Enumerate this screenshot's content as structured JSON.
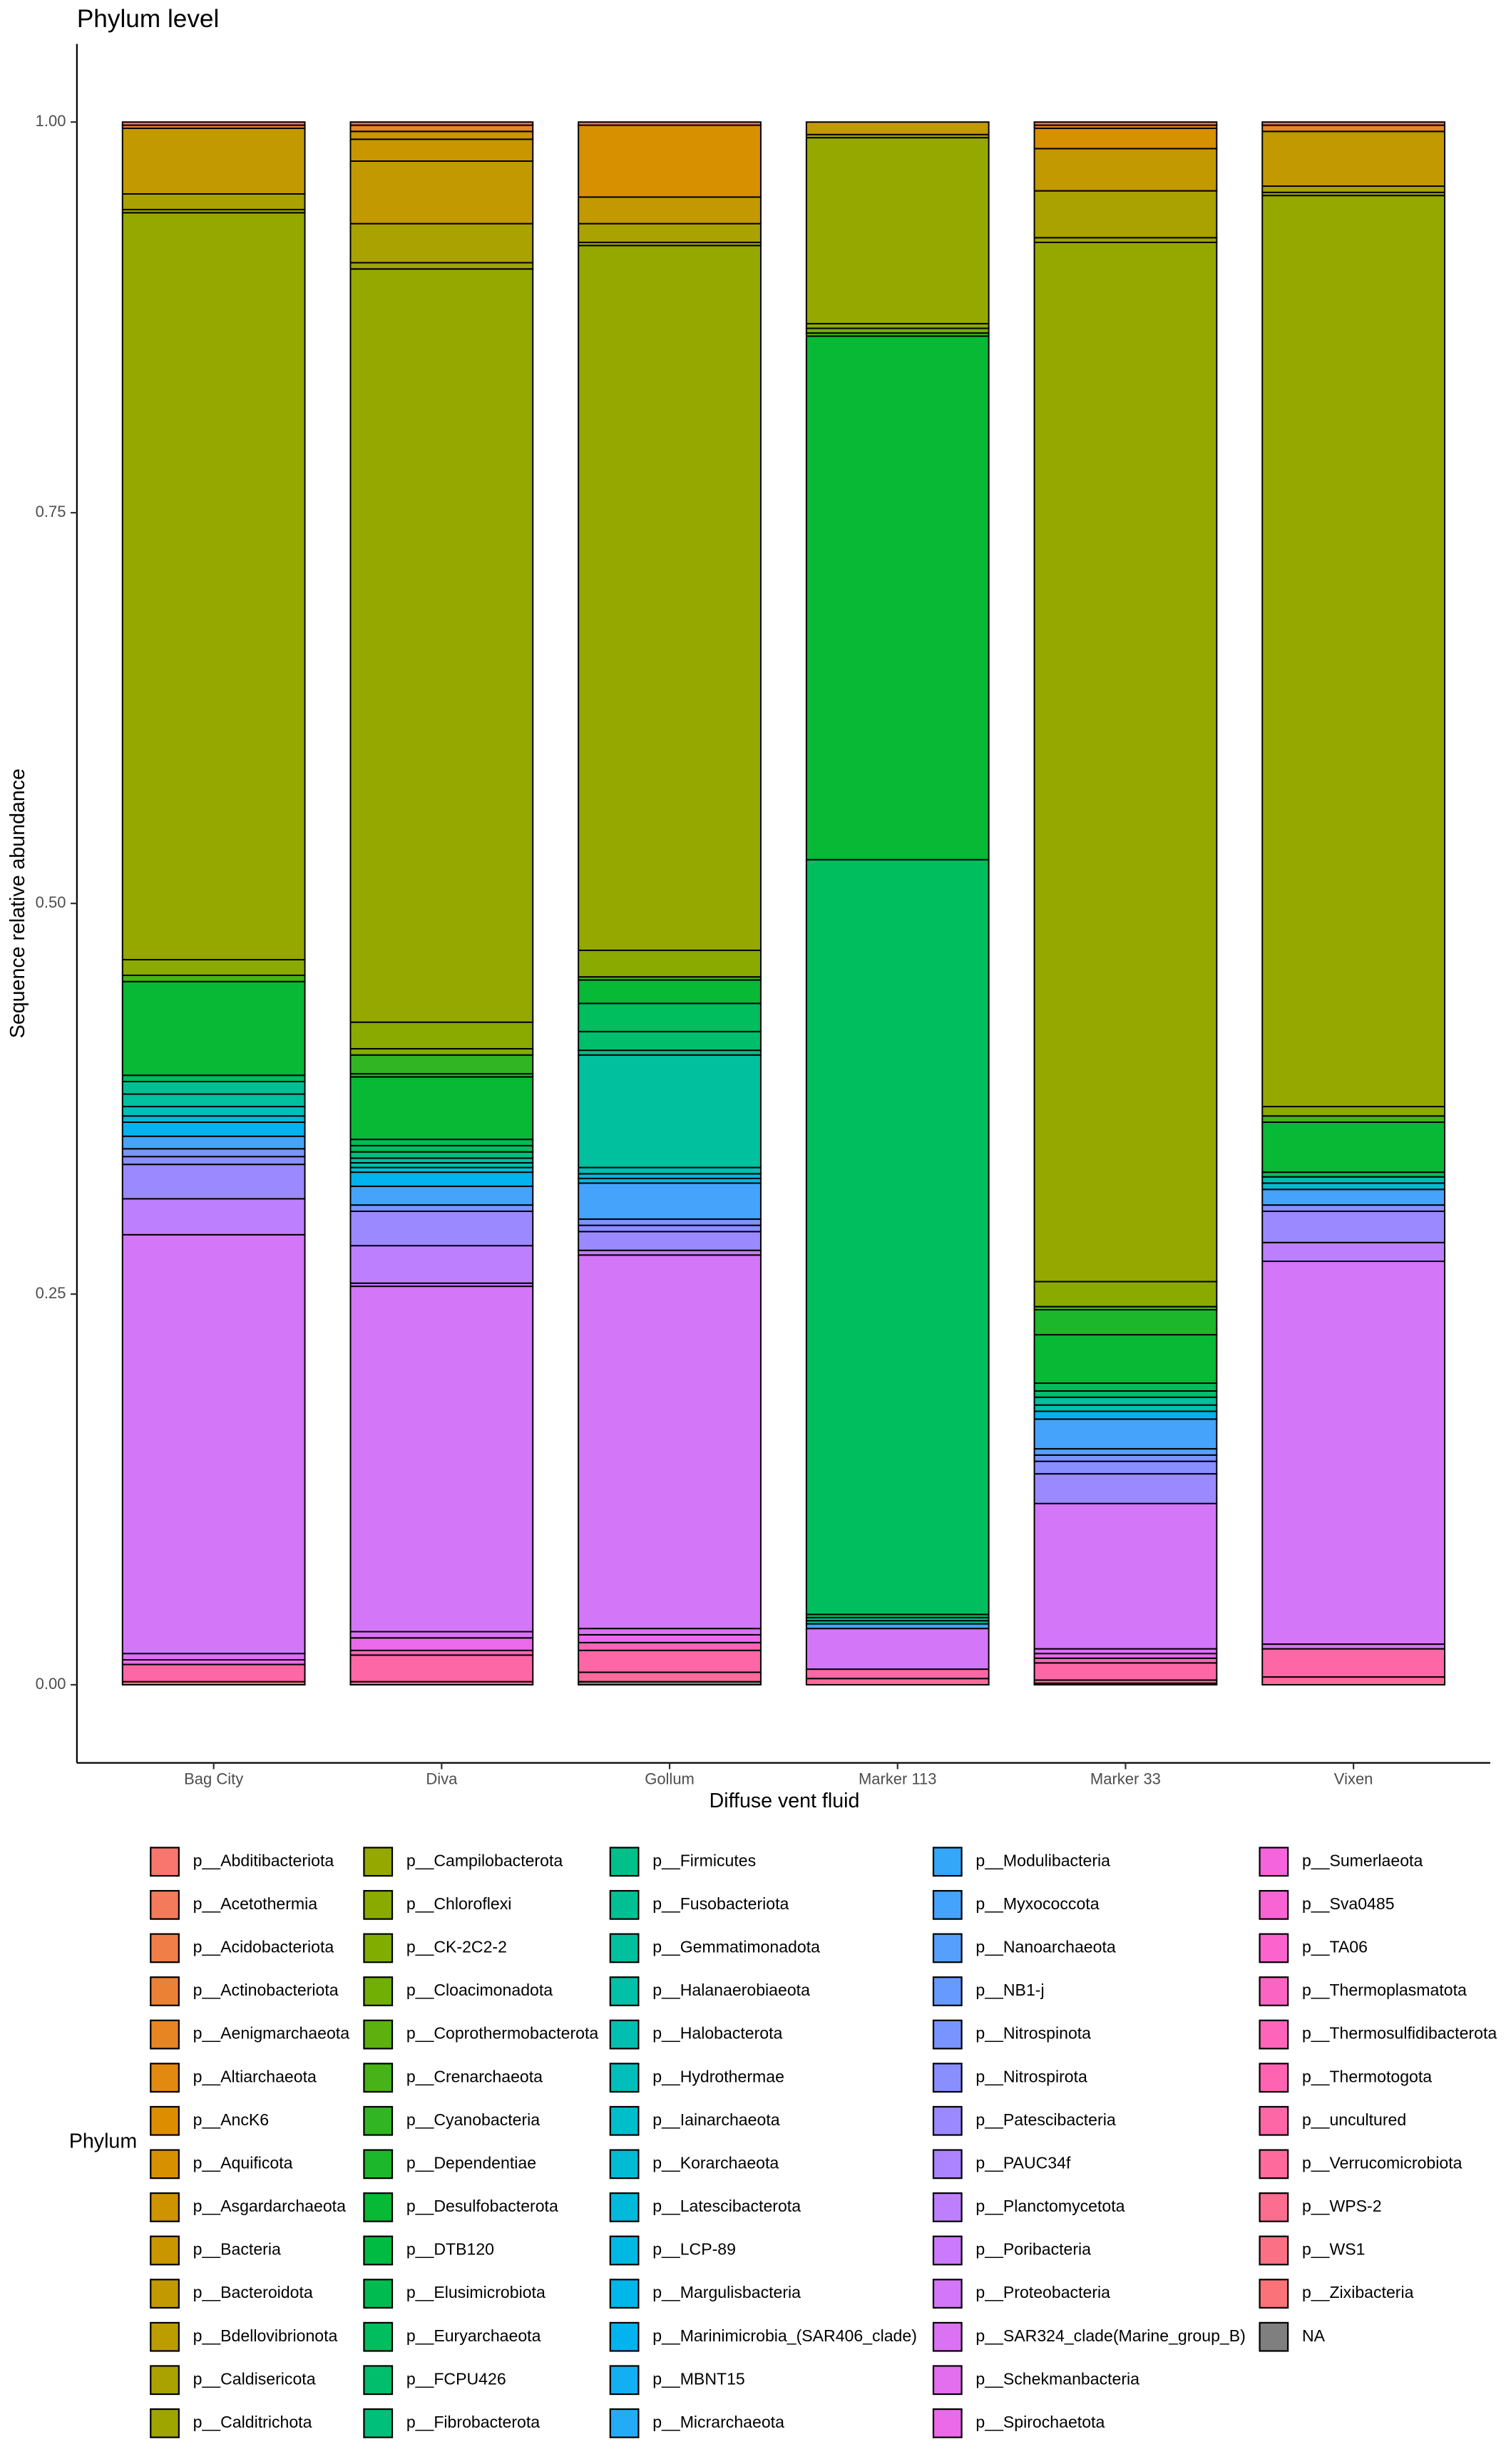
{
  "chart_data": {
    "type": "bar",
    "stacked": true,
    "title": "Phylum level",
    "x_label": "Diffuse vent fluid",
    "y_label": "Sequence relative abundance",
    "legend_title": "Phylum",
    "legend_position": "bottom",
    "grid": false,
    "categories": [
      "Bag City",
      "Diva",
      "Gollum",
      "Marker 113",
      "Marker 33",
      "Vixen"
    ],
    "ylim": [
      -0.05,
      1.05
    ],
    "yticks": [
      {
        "value": 0,
        "label": "0.00"
      },
      0.25,
      {
        "value": 0.5,
        "label": "0.50"
      },
      0.75,
      {
        "value": 1,
        "label": "1.00"
      }
    ],
    "series": [
      {
        "name": "p__Abditibacteriota",
        "color": "#F8766D",
        "values": [
          0.002,
          0,
          0,
          0,
          0,
          0
        ]
      },
      {
        "name": "p__Acetothermia",
        "color": "#F37A5A",
        "values": [
          0,
          0.002,
          0.002,
          0,
          0.002,
          0.002
        ]
      },
      {
        "name": "p__Acidobacteriota",
        "color": "#EF7E48",
        "values": [
          0,
          0,
          0,
          0,
          0,
          0
        ]
      },
      {
        "name": "p__Actinobacteriota",
        "color": "#EB8135",
        "values": [
          0.002,
          0,
          0,
          0,
          0,
          0
        ]
      },
      {
        "name": "p__Aenigmarchaeota",
        "color": "#E68522",
        "values": [
          0,
          0.004,
          0,
          0,
          0.002,
          0.004
        ]
      },
      {
        "name": "p__Altiarchaeota",
        "color": "#E28910",
        "values": [
          0,
          0,
          0,
          0,
          0,
          0
        ]
      },
      {
        "name": "p__AncK6",
        "color": "#DD8D00",
        "values": [
          0,
          0,
          0,
          0,
          0,
          0
        ]
      },
      {
        "name": "p__Aquificota",
        "color": "#D69000",
        "values": [
          0,
          0,
          0.046,
          0,
          0.013,
          0
        ]
      },
      {
        "name": "p__Asgardarchaeota",
        "color": "#CF9300",
        "values": [
          0,
          0.005,
          0,
          0,
          0,
          0
        ]
      },
      {
        "name": "p__Bacteria",
        "color": "#C99600",
        "values": [
          0,
          0.014,
          0,
          0,
          0,
          0
        ]
      },
      {
        "name": "p__Bacteroidota",
        "color": "#C29A00",
        "values": [
          0.042,
          0.04,
          0.017,
          0.008,
          0.027,
          0.035
        ]
      },
      {
        "name": "p__Bdellovibrionota",
        "color": "#BB9D00",
        "values": [
          0,
          0,
          0,
          0,
          0,
          0
        ]
      },
      {
        "name": "p__Caldisericota",
        "color": "#AAA200",
        "values": [
          0.01,
          0.025,
          0.012,
          0.002,
          0.03,
          0.004
        ]
      },
      {
        "name": "p__Calditrichota",
        "color": "#9FA500",
        "values": [
          0.002,
          0.004,
          0.002,
          0,
          0.003,
          0.002
        ]
      },
      {
        "name": "p__Campilobacterota",
        "color": "#95A800",
        "values": [
          0.478,
          0.482,
          0.451,
          0.119,
          0.665,
          0.583
        ]
      },
      {
        "name": "p__Chloroflexi",
        "color": "#8BAA00",
        "values": [
          0.01,
          0.017,
          0.017,
          0.003,
          0.016,
          0.006
        ]
      },
      {
        "name": "p__CK-2C2-2",
        "color": "#81AD00",
        "values": [
          0,
          0.004,
          0,
          0,
          0,
          0
        ]
      },
      {
        "name": "p__Cloacimonadota",
        "color": "#71AF05",
        "values": [
          0,
          0,
          0,
          0.003,
          0,
          0
        ]
      },
      {
        "name": "p__Coprothermobacterota",
        "color": "#5CB10E",
        "values": [
          0,
          0,
          0,
          0,
          0,
          0
        ]
      },
      {
        "name": "p__Crenarchaeota",
        "color": "#47B318",
        "values": [
          0.004,
          0,
          0.002,
          0.002,
          0.002,
          0.004
        ]
      },
      {
        "name": "p__Cyanobacteria",
        "color": "#32B522",
        "values": [
          0,
          0.012,
          0,
          0,
          0,
          0
        ]
      },
      {
        "name": "p__Dependentiae",
        "color": "#1CB72B",
        "values": [
          0,
          0.002,
          0,
          0,
          0.016,
          0
        ]
      },
      {
        "name": "p__Desulfobacterota",
        "color": "#07B935",
        "values": [
          0.06,
          0.04,
          0.015,
          0.335,
          0.031,
          0.032
        ]
      },
      {
        "name": "p__DTB120",
        "color": "#00BB42",
        "values": [
          0,
          0,
          0,
          0,
          0,
          0
        ]
      },
      {
        "name": "p__Elusimicrobiota",
        "color": "#00BC50",
        "values": [
          0,
          0.004,
          0,
          0,
          0,
          0
        ]
      },
      {
        "name": "p__Euryarchaeota",
        "color": "#00BD5E",
        "values": [
          0.004,
          0.004,
          0.018,
          0.483,
          0.005,
          0.003
        ]
      },
      {
        "name": "p__FCPU426",
        "color": "#00BE6C",
        "values": [
          0,
          0,
          0.012,
          0.002,
          0.004,
          0
        ]
      },
      {
        "name": "p__Fibrobacterota",
        "color": "#00BF7A",
        "values": [
          0,
          0.004,
          0,
          0,
          0,
          0
        ]
      },
      {
        "name": "p__Firmicutes",
        "color": "#00C089",
        "values": [
          0,
          0,
          0.003,
          0.002,
          0,
          0
        ]
      },
      {
        "name": "p__Fusobacteriota",
        "color": "#00C093",
        "values": [
          0.008,
          0,
          0,
          0,
          0,
          0
        ]
      },
      {
        "name": "p__Gemmatimonadota",
        "color": "#00C09D",
        "values": [
          0.008,
          0.003,
          0.072,
          0.002,
          0.005,
          0
        ]
      },
      {
        "name": "p__Halanaerobiaeota",
        "color": "#00C0A7",
        "values": [
          0,
          0,
          0,
          0,
          0,
          0
        ]
      },
      {
        "name": "p__Halobacterota",
        "color": "#00BFB0",
        "values": [
          0,
          0.003,
          0.004,
          0,
          0.004,
          0.004
        ]
      },
      {
        "name": "p__Hydrothermae",
        "color": "#00BFBA",
        "values": [
          0.006,
          0,
          0,
          0,
          0,
          0
        ]
      },
      {
        "name": "p__Iainarchaeota",
        "color": "#00BDCC",
        "values": [
          0,
          0,
          0,
          0,
          0,
          0
        ]
      },
      {
        "name": "p__Korarchaeota",
        "color": "#00BBD3",
        "values": [
          0,
          0.003,
          0,
          0,
          0,
          0.004
        ]
      },
      {
        "name": "p__Latescibacterota",
        "color": "#00B9DB",
        "values": [
          0.004,
          0,
          0.003,
          0,
          0,
          0
        ]
      },
      {
        "name": "p__LCP-89",
        "color": "#00B8E2",
        "values": [
          0,
          0,
          0.003,
          0,
          0,
          0
        ]
      },
      {
        "name": "p__Margulisbacteria",
        "color": "#00B6EA",
        "values": [
          0,
          0,
          0,
          0,
          0,
          0
        ]
      },
      {
        "name": "p__Marinimicrobia_(SAR406_clade)",
        "color": "#03B3F0",
        "values": [
          0.009,
          0.009,
          0,
          0,
          0.005,
          0
        ]
      },
      {
        "name": "p__MBNT15",
        "color": "#13AFF3",
        "values": [
          0,
          0,
          0,
          0,
          0,
          0
        ]
      },
      {
        "name": "p__Micrarchaeota",
        "color": "#24ABF6",
        "values": [
          0,
          0,
          0,
          0,
          0,
          0
        ]
      },
      {
        "name": "p__Modulibacteria",
        "color": "#35A7F8",
        "values": [
          0,
          0,
          0,
          0,
          0,
          0
        ]
      },
      {
        "name": "p__Myxococcota",
        "color": "#45A3FB",
        "values": [
          0.008,
          0.012,
          0.023,
          0.003,
          0.019,
          0.01
        ]
      },
      {
        "name": "p__Nanoarchaeota",
        "color": "#569FFD",
        "values": [
          0,
          0,
          0,
          0,
          0.004,
          0
        ]
      },
      {
        "name": "p__NB1-j",
        "color": "#679AFF",
        "values": [
          0,
          0,
          0,
          0,
          0,
          0
        ]
      },
      {
        "name": "p__Nitrospinota",
        "color": "#7895FF",
        "values": [
          0.005,
          0.004,
          0.004,
          0,
          0.004,
          0
        ]
      },
      {
        "name": "p__Nitrospirota",
        "color": "#8A8FFF",
        "values": [
          0.005,
          0,
          0.004,
          0,
          0.008,
          0.004
        ]
      },
      {
        "name": "p__Patescibacteria",
        "color": "#9B8AFF",
        "values": [
          0.022,
          0.022,
          0.012,
          0,
          0.019,
          0.02
        ]
      },
      {
        "name": "p__PAUC34f",
        "color": "#AD84FF",
        "values": [
          0,
          0,
          0,
          0,
          0,
          0
        ]
      },
      {
        "name": "p__Planctomycetota",
        "color": "#BE7FFF",
        "values": [
          0.023,
          0.024,
          0.003,
          0,
          0,
          0.012
        ]
      },
      {
        "name": "p__Poribacteria",
        "color": "#CB7AFD",
        "values": [
          0,
          0.002,
          0,
          0,
          0,
          0
        ]
      },
      {
        "name": "p__Proteobacteria",
        "color": "#D376F8",
        "values": [
          0.268,
          0.221,
          0.239,
          0.026,
          0.093,
          0.245
        ]
      },
      {
        "name": "p__SAR324_clade(Marine_group_B)",
        "color": "#DB72F3",
        "values": [
          0.004,
          0.004,
          0.004,
          0,
          0.003,
          0.003
        ]
      },
      {
        "name": "p__Schekmanbacteria",
        "color": "#E36EEE",
        "values": [
          0,
          0,
          0,
          0,
          0,
          0
        ]
      },
      {
        "name": "p__Spirochaetota",
        "color": "#EA6AE9",
        "values": [
          0.003,
          0.008,
          0.005,
          0,
          0.003,
          0
        ]
      },
      {
        "name": "p__Sumerlaeota",
        "color": "#F664DD",
        "values": [
          0,
          0,
          0,
          0,
          0,
          0
        ]
      },
      {
        "name": "p__Sva0485",
        "color": "#F864D4",
        "values": [
          0,
          0,
          0,
          0,
          0,
          0
        ]
      },
      {
        "name": "p__TA06",
        "color": "#FA64CC",
        "values": [
          0,
          0,
          0,
          0,
          0,
          0
        ]
      },
      {
        "name": "p__Thermoplasmatota",
        "color": "#FB64C3",
        "values": [
          0,
          0,
          0,
          0,
          0,
          0
        ]
      },
      {
        "name": "p__Thermosulfidibacterota",
        "color": "#FD64BA",
        "values": [
          0,
          0,
          0,
          0,
          0,
          0
        ]
      },
      {
        "name": "p__Thermotogota",
        "color": "#FF64B2",
        "values": [
          0,
          0.003,
          0.005,
          0,
          0.003,
          0
        ]
      },
      {
        "name": "p__uncultured",
        "color": "#FE67A6",
        "values": [
          0.011,
          0.017,
          0.014,
          0.006,
          0.011,
          0.018
        ]
      },
      {
        "name": "p__Verrucomicrobiota",
        "color": "#FD6A9B",
        "values": [
          0,
          0.002,
          0.006,
          0.004,
          0.002,
          0.005
        ]
      },
      {
        "name": "p__WPS-2",
        "color": "#FC6D8F",
        "values": [
          0,
          0,
          0,
          0,
          0,
          0
        ]
      },
      {
        "name": "p__WS1",
        "color": "#FA7084",
        "values": [
          0,
          0,
          0,
          0,
          0,
          0
        ]
      },
      {
        "name": "p__Zixibacteria",
        "color": "#F97379",
        "values": [
          0.002,
          0,
          0,
          0,
          0,
          0
        ]
      },
      {
        "name": "NA",
        "color": "#7F7F7F",
        "values": [
          0,
          0,
          0.002,
          0,
          0.001,
          0
        ]
      }
    ]
  }
}
